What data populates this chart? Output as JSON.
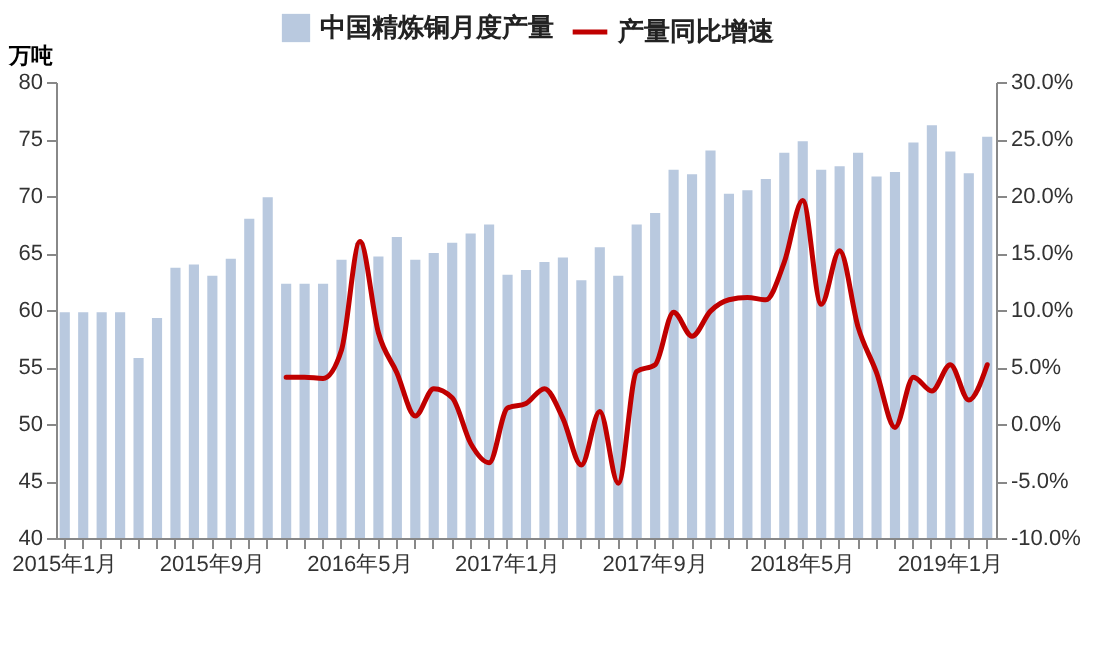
{
  "chart_data": {
    "type": "bar",
    "ylabel": "万吨",
    "legend": "top",
    "categories": [
      "2015年1月",
      null,
      null,
      null,
      null,
      null,
      null,
      null,
      "2015年9月",
      null,
      null,
      null,
      null,
      null,
      null,
      null,
      "2016年5月",
      null,
      null,
      null,
      null,
      null,
      null,
      null,
      "2017年1月",
      null,
      null,
      null,
      null,
      null,
      null,
      null,
      "2017年9月",
      null,
      null,
      null,
      null,
      null,
      null,
      null,
      "2018年5月",
      null,
      null,
      null,
      null,
      null,
      null,
      null,
      "2019年1月",
      null,
      null
    ],
    "series": [
      {
        "name": "中国精炼铜月度产量",
        "color": "#b9c9df",
        "values": [
          59.8,
          59.8,
          59.8,
          59.8,
          55.8,
          59.3,
          63.7,
          64.0,
          63.0,
          64.5,
          68.0,
          69.9,
          62.3,
          62.3,
          62.3,
          64.4,
          65.9,
          64.7,
          66.4,
          64.4,
          65.0,
          65.9,
          66.7,
          67.5,
          63.1,
          63.5,
          64.2,
          64.6,
          62.6,
          65.5,
          63.0,
          67.5,
          68.5,
          72.3,
          71.9,
          74.0,
          70.2,
          70.5,
          71.5,
          73.8,
          74.8,
          72.3,
          72.6,
          73.8,
          71.7,
          72.1,
          74.7,
          76.2,
          73.9,
          72.0,
          75.2
        ]
      },
      {
        "name": "产量同比增速",
        "type": "line",
        "axis": "y2",
        "color": "#c00000",
        "values": [
          null,
          null,
          null,
          null,
          null,
          null,
          null,
          null,
          null,
          null,
          null,
          null,
          4.1,
          4.1,
          4.0,
          6.5,
          16.0,
          8.0,
          4.5,
          0.7,
          3.1,
          2.3,
          -1.7,
          -3.4,
          1.4,
          1.8,
          3.1,
          0.5,
          -3.6,
          1.1,
          -5.2,
          4.6,
          5.2,
          9.8,
          7.7,
          9.9,
          10.9,
          11.1,
          10.9,
          14.2,
          19.6,
          10.5,
          15.2,
          8.5,
          4.5,
          -0.3,
          4.1,
          2.9,
          5.2,
          2.1,
          5.2
        ]
      }
    ],
    "ylim": [
      40,
      80
    ],
    "yticks": [
      40,
      45,
      50,
      55,
      60,
      65,
      70,
      75,
      80
    ],
    "y2lim": [
      -10,
      30
    ],
    "y2ticks": [
      {
        "value": -10,
        "label": "-10.0%"
      },
      {
        "value": -5,
        "label": "-5.0%"
      },
      {
        "value": 0,
        "label": "0.0%"
      },
      {
        "value": 5,
        "label": "5.0%"
      },
      {
        "value": 10,
        "label": "10.0%"
      },
      {
        "value": 15,
        "label": "15.0%"
      },
      {
        "value": 20,
        "label": "20.0%"
      },
      {
        "value": 25,
        "label": "25.0%"
      },
      {
        "value": 30,
        "label": "30.0%"
      }
    ]
  }
}
